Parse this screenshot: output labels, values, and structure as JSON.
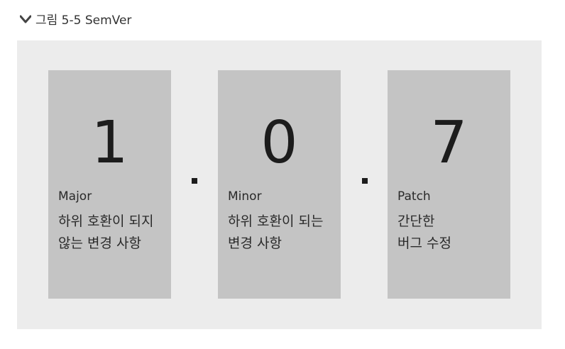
{
  "caption": {
    "icon": "chevron-down-icon",
    "text": "그림 5-5 SemVer"
  },
  "cards": [
    {
      "digit": "1",
      "name": "Major",
      "desc": "하위 호환이 되지\n않는 변경 사항"
    },
    {
      "digit": "0",
      "name": "Minor",
      "desc": "하위 호환이 되는\n변경 사항"
    },
    {
      "digit": "7",
      "name": "Patch",
      "desc": "간단한\n버그 수정"
    }
  ],
  "colors": {
    "panel": "#ececec",
    "card": "#c4c4c4",
    "text": "#1c1c1c"
  }
}
